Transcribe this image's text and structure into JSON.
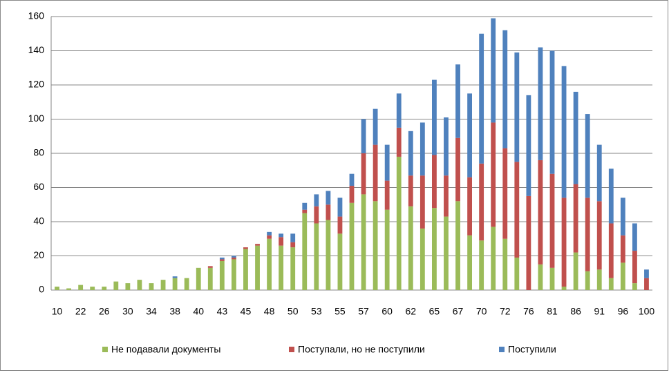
{
  "chart_data": {
    "type": "stacked_bar",
    "categories": [
      "10",
      null,
      "22",
      null,
      "26",
      null,
      "30",
      null,
      "34",
      null,
      "38",
      null,
      "40",
      null,
      "43",
      null,
      "45",
      null,
      "48",
      null,
      "50",
      null,
      "53",
      null,
      "55",
      null,
      "57",
      null,
      "60",
      null,
      "62",
      null,
      "65",
      null,
      "67",
      null,
      "70",
      null,
      "72",
      null,
      "76",
      null,
      "81",
      null,
      "86",
      null,
      "91",
      null,
      "96",
      null,
      "100"
    ],
    "series": [
      {
        "name": "Не подавали документы",
        "color": "#9bbb59",
        "values": [
          2,
          1,
          3,
          2,
          2,
          5,
          4,
          6,
          4,
          6,
          7,
          7,
          13,
          13,
          17,
          18,
          24,
          26,
          30,
          26,
          25,
          45,
          39,
          41,
          33,
          51,
          56,
          52,
          47,
          78,
          49,
          36,
          48,
          43,
          52,
          32,
          29,
          37,
          30,
          19,
          0,
          15,
          13,
          2,
          22,
          11,
          12,
          7,
          16,
          4,
          0
        ]
      },
      {
        "name": "Поступали, но не поступили",
        "color": "#c0504d",
        "values": [
          0,
          0,
          0,
          0,
          0,
          0,
          0,
          0,
          0,
          0,
          0,
          0,
          0,
          1,
          1,
          1,
          1,
          1,
          2,
          5,
          3,
          2,
          10,
          9,
          10,
          10,
          24,
          33,
          17,
          17,
          18,
          31,
          31,
          24,
          37,
          34,
          45,
          61,
          53,
          56,
          55,
          61,
          55,
          52,
          40,
          43,
          40,
          32,
          16,
          19,
          7
        ]
      },
      {
        "name": "Поступили",
        "color": "#4f81bd",
        "values": [
          0,
          0,
          0,
          0,
          0,
          0,
          0,
          0,
          0,
          0,
          1,
          0,
          0,
          0,
          1,
          1,
          0,
          0,
          2,
          2,
          5,
          4,
          7,
          8,
          11,
          7,
          20,
          21,
          21,
          20,
          26,
          31,
          44,
          34,
          43,
          49,
          76,
          61,
          69,
          64,
          59,
          66,
          72,
          77,
          54,
          49,
          33,
          32,
          22,
          16,
          5
        ]
      }
    ],
    "ylim": [
      0,
      160
    ],
    "yticks": [
      0,
      20,
      40,
      60,
      80,
      100,
      120,
      140,
      160
    ],
    "grid": true,
    "legend": "bottom"
  }
}
